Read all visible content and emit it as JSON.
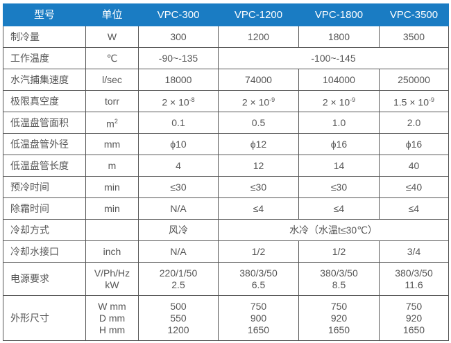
{
  "header": [
    "型号",
    "单位",
    "VPC-300",
    "VPC-1200",
    "VPC-1800",
    "VPC-3500"
  ],
  "rows": {
    "cooling_capacity": [
      "制冷量",
      "W",
      "300",
      "1200",
      "1800",
      "3500"
    ],
    "work_temp": [
      "工作温度",
      "℃",
      "-90~-135",
      "-100~-145"
    ],
    "capture_speed": [
      "水汽捕集速度",
      "l/sec",
      "18000",
      "74000",
      "104000",
      "250000"
    ],
    "vacuum": {
      "label": "极限真空度",
      "unit": "torr",
      "values": [
        {
          "base": "2 × 10",
          "exp": "-8"
        },
        {
          "base": "2 × 10",
          "exp": "-9"
        },
        {
          "base": "2 × 10",
          "exp": "-9"
        },
        {
          "base": "1.5 × 10",
          "exp": "-9"
        }
      ]
    },
    "coil_area": {
      "label": "低温盘管面积",
      "unit": "m",
      "unit_exp": "2",
      "values": [
        "0.1",
        "0.5",
        "1.0",
        "2.0"
      ]
    },
    "coil_diameter": [
      "低温盘管外径",
      "mm",
      "ϕ10",
      "ϕ12",
      "ϕ16",
      "ϕ16"
    ],
    "coil_length": [
      "低温盘管长度",
      "m",
      "4",
      "12",
      "14",
      "40"
    ],
    "precool_time": [
      "预冷时间",
      "min",
      "≤30",
      "≤30",
      "≤30",
      "≤40"
    ],
    "defrost_time": [
      "除霜时间",
      "min",
      "N/A",
      "≤4",
      "≤4",
      "≤4"
    ],
    "cooling_method": [
      "冷却方式",
      "",
      "风冷",
      "水冷（水温t≤30℃）"
    ],
    "water_connection": [
      "冷却水接口",
      "inch",
      "N/A",
      "1/2",
      "1/2",
      "3/4"
    ],
    "power": {
      "label": "电源要求",
      "units": [
        "V/Ph/Hz",
        "kW"
      ],
      "values": [
        [
          "220/1/50",
          "2.5"
        ],
        [
          "380/3/50",
          "6.5"
        ],
        [
          "380/3/50",
          "8.5"
        ],
        [
          "380/3/50",
          "11.6"
        ]
      ]
    },
    "dimensions": {
      "label": "外形尺寸",
      "units": [
        "W mm",
        "D mm",
        "H mm"
      ],
      "values": [
        [
          "500",
          "550",
          "1200"
        ],
        [
          "750",
          "900",
          "1650"
        ],
        [
          "750",
          "920",
          "1650"
        ],
        [
          "750",
          "920",
          "1650"
        ]
      ]
    }
  }
}
